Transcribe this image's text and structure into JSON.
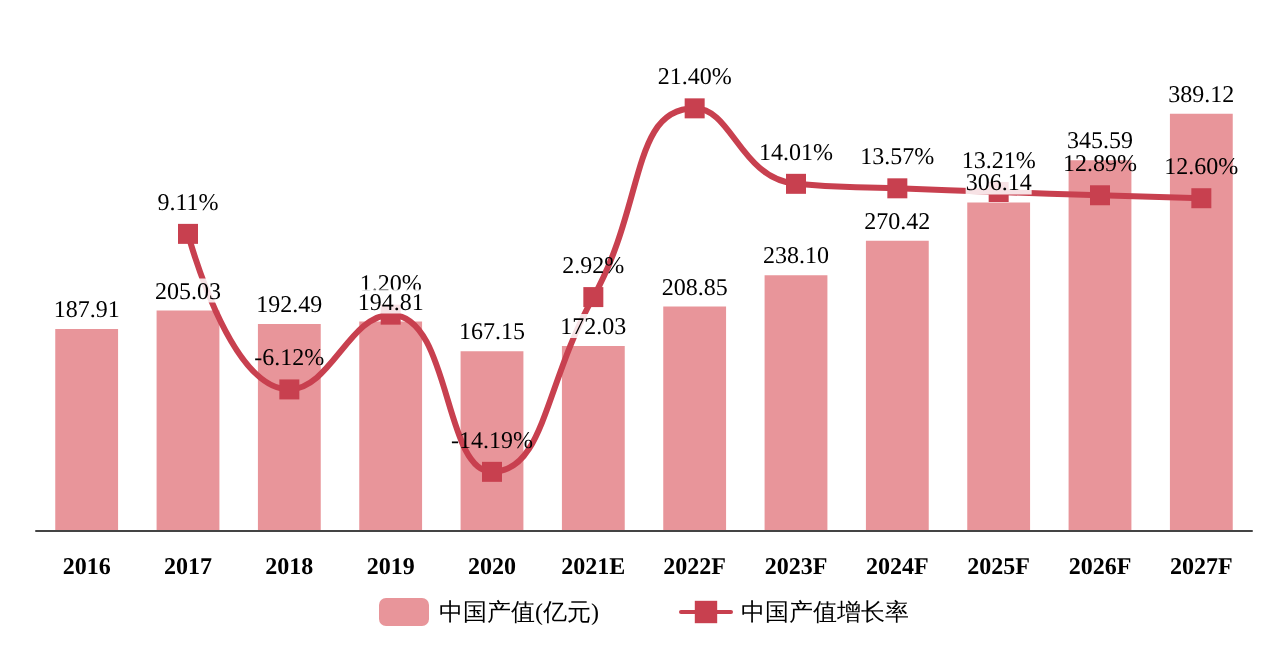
{
  "chart_data": {
    "type": "bar",
    "categories": [
      "2016",
      "2017",
      "2018",
      "2019",
      "2020",
      "2021E",
      "2022F",
      "2023F",
      "2024F",
      "2025F",
      "2026F",
      "2027F"
    ],
    "series": [
      {
        "name": "中国产值(亿元)",
        "type": "bar",
        "color": "#e8959a",
        "values": [
          187.91,
          205.03,
          192.49,
          194.81,
          167.15,
          172.03,
          208.85,
          238.1,
          270.42,
          306.14,
          345.59,
          389.12
        ],
        "value_labels": [
          "187.91",
          "205.03",
          "192.49",
          "194.81",
          "167.15",
          "172.03",
          "208.85",
          "238.10",
          "270.42",
          "306.14",
          "345.59",
          "389.12"
        ]
      },
      {
        "name": "中国产值增长率",
        "type": "line",
        "axis": "y2",
        "color": "#c8404f",
        "marker": "square",
        "values": [
          null,
          9.11,
          -6.12,
          1.2,
          -14.19,
          2.92,
          21.4,
          14.01,
          13.57,
          13.21,
          12.89,
          12.6
        ],
        "value_labels": [
          null,
          "9.11%",
          "-6.12%",
          "1.20%",
          "-14.19%",
          "2.92%",
          "21.40%",
          "14.01%",
          "13.57%",
          "13.21%",
          "12.89%",
          "12.60%"
        ]
      }
    ],
    "legend": "bottom",
    "grid": false
  }
}
